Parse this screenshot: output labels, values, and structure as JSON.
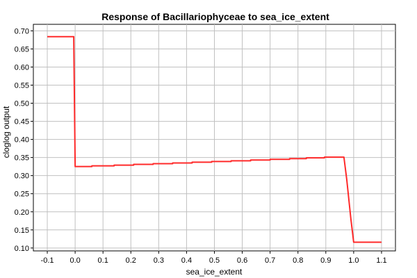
{
  "chart_data": {
    "type": "line",
    "title": "Response of Bacillariophyceae to sea_ice_extent",
    "xlabel": "sea_ice_extent",
    "ylabel": "cloglog output",
    "xlim": [
      -0.15,
      1.15
    ],
    "ylim": [
      0.092,
      0.718
    ],
    "x_ticks": [
      -0.1,
      0.0,
      0.1,
      0.2,
      0.3,
      0.4,
      0.5,
      0.6,
      0.7,
      0.8,
      0.9,
      1.0,
      1.1
    ],
    "x_tick_labels": [
      "-0.1",
      "0.0",
      "0.1",
      "0.2",
      "0.3",
      "0.4",
      "0.5",
      "0.6",
      "0.7",
      "0.8",
      "0.9",
      "1.0",
      "1.1"
    ],
    "y_ticks": [
      0.1,
      0.15,
      0.2,
      0.25,
      0.3,
      0.35,
      0.4,
      0.45,
      0.5,
      0.55,
      0.6,
      0.65,
      0.7
    ],
    "y_tick_labels": [
      "0.10",
      "0.15",
      "0.20",
      "0.25",
      "0.30",
      "0.35",
      "0.40",
      "0.45",
      "0.50",
      "0.55",
      "0.60",
      "0.65",
      "0.70"
    ],
    "grid": true,
    "line_color": "#ff2a2a",
    "series": [
      {
        "name": "",
        "x": [
          -0.1,
          -0.005,
          0.0,
          0.003,
          0.06,
          0.06,
          0.14,
          0.14,
          0.21,
          0.21,
          0.28,
          0.28,
          0.35,
          0.35,
          0.42,
          0.42,
          0.49,
          0.49,
          0.56,
          0.56,
          0.63,
          0.63,
          0.7,
          0.7,
          0.77,
          0.77,
          0.83,
          0.83,
          0.895,
          0.895,
          0.965,
          0.975,
          0.99,
          1.0,
          1.1
        ],
        "y": [
          0.684,
          0.684,
          0.325,
          0.325,
          0.325,
          0.327,
          0.327,
          0.329,
          0.329,
          0.331,
          0.331,
          0.333,
          0.333,
          0.335,
          0.335,
          0.337,
          0.337,
          0.339,
          0.339,
          0.341,
          0.341,
          0.343,
          0.343,
          0.345,
          0.345,
          0.347,
          0.347,
          0.349,
          0.349,
          0.351,
          0.351,
          0.29,
          0.18,
          0.116,
          0.116
        ]
      }
    ]
  }
}
